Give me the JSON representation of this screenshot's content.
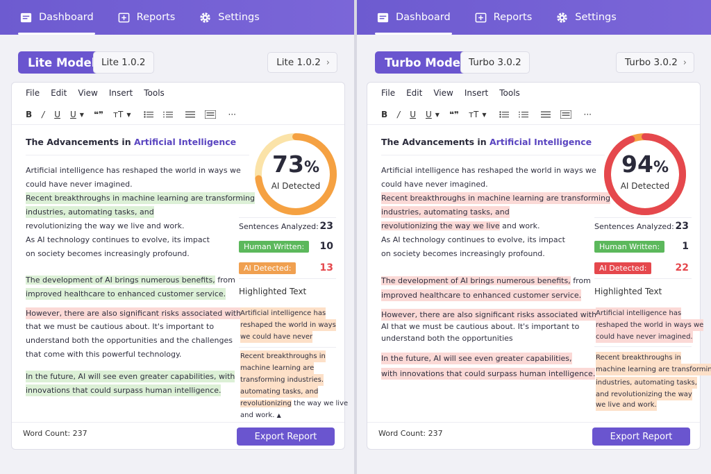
{
  "nav": {
    "dashboard": "Dashboard",
    "reports": "Reports",
    "settings": "Settings"
  },
  "editor": {
    "menu": [
      "File",
      "Edit",
      "View",
      "Insert",
      "Tools"
    ],
    "toolbar": {
      "bold": "B",
      "italic": "/",
      "underline": "U",
      "underline_dd": "U",
      "quote": "❝❞",
      "text_size": "тT",
      "more": "···"
    },
    "word_count": "Word Count: 237",
    "export_label": "Export Report",
    "highlighted_heading": "Highlighted Text",
    "stats_labels": {
      "analyzed": "Sentences Analyzed:",
      "human": "Human Written:",
      "ai": "AI Detected:"
    },
    "gauge_label": "AI Detected",
    "title_prefix": "The Advancements in ",
    "title_accent": "Artificial Intelligence"
  },
  "left": {
    "model_badge": "Lite Model",
    "model_version": "Lite 1.0.2",
    "model_select": "Lite 1.0.2",
    "percent": "73",
    "percent_fraction": 0.73,
    "gauge_color": "#f5a142",
    "sentences_analyzed": "23",
    "human_written": "10",
    "ai_detected": "13",
    "lines": [
      "Artificial intelligence has reshaped the world in ways we",
      "could have never imagined.",
      "Recent breakthroughs in machine learning are transforming",
      "industries, automating tasks, and",
      "revolutionizing the way we live and work.",
      "As AI technology continues to evolve, its impact",
      "on society becomes increasingly profound.",
      "The development of AI brings numerous benefits,",
      " from",
      "improved healthcare to enhanced customer service.",
      "However, there are also significant risks associated withAI",
      "that we must be cautious about. It's important to",
      "understand both the opportunities and the challenges",
      "that come with this powerful technology.",
      "In the future, AI will see even greater capabilities, with",
      "innovations that could surpass human intelligence."
    ],
    "snippets": [
      "Artificial intelligence has",
      "reshaped the world in ways",
      "we could have never",
      "Recent breakthroughs in",
      "machine learning are",
      "transforming industries.",
      "automating tasks, and",
      "revolutionizing",
      " the way we live",
      "and work."
    ]
  },
  "right": {
    "model_badge": "Turbo Model",
    "model_version": "Turbo 3.0.2",
    "model_select": "Turbo 3.0.2",
    "percent": "94",
    "percent_fraction": 0.94,
    "gauge_color": "#e5484d",
    "sentences_analyzed": "23",
    "human_written": "1",
    "ai_detected": "22",
    "lines": [
      "Artificial intelligence has reshaped the world in ways we",
      "could have never imagined.",
      "Recent breakthroughs in machine learning are transforming",
      "industries, automating tasks, and",
      "revolutionizing the way we live",
      " and work.",
      "As AI technology continues to evolve, its impact",
      "on society becomes increasingly profound.",
      "The development of AI brings numerous benefits,",
      " from",
      "improved healthcare to enhanced customer service.",
      "However, there are also significant risks associated with",
      "AI that we must be cautious about. It's important to",
      "understand both the opportunities",
      "In the future, AI will see even greater capabilities,",
      "with innovations that could surpass human intelligence."
    ],
    "snippets": [
      "Artificial intelligence has",
      "reshaped the world in ways we",
      "could have never imagined.",
      "Recent breakthroughs in",
      "machine learning are transforming",
      "industries, automating tasks,",
      "and revolutionizing the way",
      "we live and work."
    ]
  }
}
